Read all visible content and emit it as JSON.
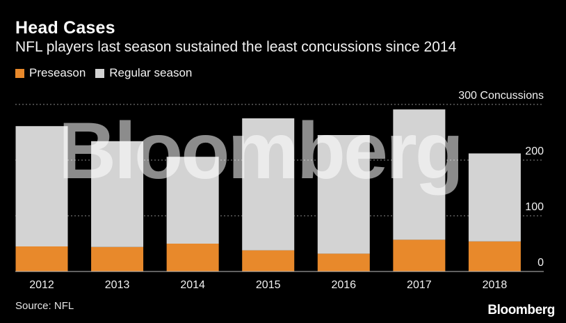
{
  "title": "Head Cases",
  "subtitle": "NFL players last season sustained the least concussions since 2014",
  "source": "Source: NFL",
  "logo": "Bloomberg",
  "watermark": "Bloomberg",
  "colors": {
    "background": "#000000",
    "preseason": "#e8892b",
    "regular_season": "#d3d3d3",
    "gridline": "#8c8c8c"
  },
  "chart_data": {
    "type": "bar",
    "stacked": true,
    "categories": [
      "2012",
      "2013",
      "2014",
      "2015",
      "2016",
      "2017",
      "2018"
    ],
    "series": [
      {
        "name": "Preseason",
        "values": [
          45,
          44,
          50,
          38,
          32,
          57,
          54
        ]
      },
      {
        "name": "Regular season",
        "values": [
          216,
          190,
          156,
          237,
          213,
          234,
          158
        ]
      }
    ],
    "y_ticks": [
      0,
      100,
      200,
      300
    ],
    "y_tick_labels": [
      "0",
      "100",
      "200",
      "300 Concussions"
    ],
    "ylim": [
      0,
      300
    ],
    "legend_placement": "top-left",
    "grid": true
  }
}
